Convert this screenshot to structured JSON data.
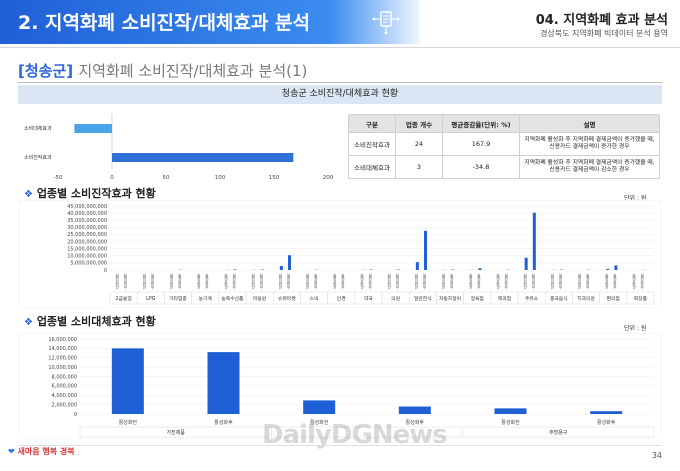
{
  "header": {
    "title": "2. 지역화폐 소비진작/대체효과 분석",
    "section": "04. 지역화폐 효과 분석",
    "subtitle": "경상북도 지역화폐 빅데이터 분석 용역",
    "band_color": "#2b6fe0"
  },
  "section_title": {
    "region": "[청송군]",
    "rest": "지역화폐 소비진작/대체효과 분석(1)"
  },
  "panel_title": "청송군 소비진작/대체효과 현황",
  "summary_chart": {
    "categories": [
      "소비대체효과",
      "소비진작효과"
    ],
    "values": [
      -34.8,
      167.9
    ],
    "ticks": [
      "-50",
      "0",
      "50",
      "100",
      "150",
      "200"
    ],
    "color": "#2f6fd6",
    "negative_color": "#4aa3e8"
  },
  "summary_table": {
    "headers": [
      "구분",
      "업종 개수",
      "평균증감율(단위: %)",
      "설명"
    ],
    "rows": [
      {
        "name": "소비진작효과",
        "count": "24",
        "rate": "167.9",
        "desc1": "지역화폐 활성화 후 지역화폐 결제금액이 증가했을 때,",
        "desc2": "신용카드 결제금액이 증가한 경우"
      },
      {
        "name": "소비대체효과",
        "count": "3",
        "rate": "-34.8",
        "desc1": "지역화폐 활성화 후 지역화폐 결제금액이 증가했을 때,",
        "desc2": "신용카드 결제금액이 감소한 경우"
      }
    ]
  },
  "chart1": {
    "heading": "업종별 소비진작효과 현황",
    "unit": "단위 : 원",
    "yticks": [
      "45,000,000,000",
      "40,000,000,000",
      "35,000,000,000",
      "30,000,000,000",
      "25,000,000,000",
      "20,000,000,000",
      "15,000,000,000",
      "10,000,000,000",
      "5,000,000,000",
      "0"
    ],
    "ymax": 45000000000,
    "bar_labels": [
      "활성화전",
      "활성화후"
    ],
    "groups": [
      {
        "name": "2금융업",
        "before": 0,
        "after": 0
      },
      {
        "name": "LPG",
        "before": 0,
        "after": 0
      },
      {
        "name": "가타업종",
        "before": 0,
        "after": 200000000
      },
      {
        "name": "농기계",
        "before": 0,
        "after": 0
      },
      {
        "name": "농축수산품",
        "before": 100000000,
        "after": 400000000
      },
      {
        "name": "미용원",
        "before": 100000000,
        "after": 300000000
      },
      {
        "name": "슈퍼마켓",
        "before": 2800000000,
        "after": 10400000000
      },
      {
        "name": "스낵",
        "before": 0,
        "after": 200000000
      },
      {
        "name": "안경",
        "before": 0,
        "after": 0
      },
      {
        "name": "약국",
        "before": 100000000,
        "after": 300000000
      },
      {
        "name": "의원",
        "before": 0,
        "after": 300000000
      },
      {
        "name": "일반한식",
        "before": 5500000000,
        "after": 27500000000
      },
      {
        "name": "자동차정비",
        "before": 100000000,
        "after": 300000000
      },
      {
        "name": "정육점",
        "before": 100000000,
        "after": 1200000000
      },
      {
        "name": "제과점",
        "before": 0,
        "after": 200000000
      },
      {
        "name": "주유소",
        "before": 8600000000,
        "after": 40300000000
      },
      {
        "name": "중국음식",
        "before": 100000000,
        "after": 300000000
      },
      {
        "name": "치과의원",
        "before": 0,
        "after": 200000000
      },
      {
        "name": "편의점",
        "before": 800000000,
        "after": 3200000000
      },
      {
        "name": "화장품",
        "before": 0,
        "after": 100000000
      }
    ]
  },
  "chart2": {
    "heading": "업종별 소비대체효과 현황",
    "unit": "단위 : 원",
    "yticks": [
      "16,000,000",
      "14,000,000",
      "12,000,000",
      "10,000,000",
      "8,000,000",
      "6,000,000",
      "4,000,000",
      "2,000,000",
      "0"
    ],
    "ymax": 16000000,
    "bars": [
      {
        "label": "활성화전",
        "value": 14000000
      },
      {
        "label": "활성화후",
        "value": 13200000
      },
      {
        "label": "활성화전",
        "value": 2900000
      },
      {
        "label": "활성화후",
        "value": 1600000
      },
      {
        "label": "활성화전",
        "value": 1200000
      },
      {
        "label": "활성화후",
        "value": 600000
      }
    ],
    "groups": [
      "가전제품",
      "",
      "주방용구"
    ]
  },
  "footer": {
    "page": "34",
    "logo": "새마음 행복 경북",
    "watermark": "DailyDGNews"
  }
}
